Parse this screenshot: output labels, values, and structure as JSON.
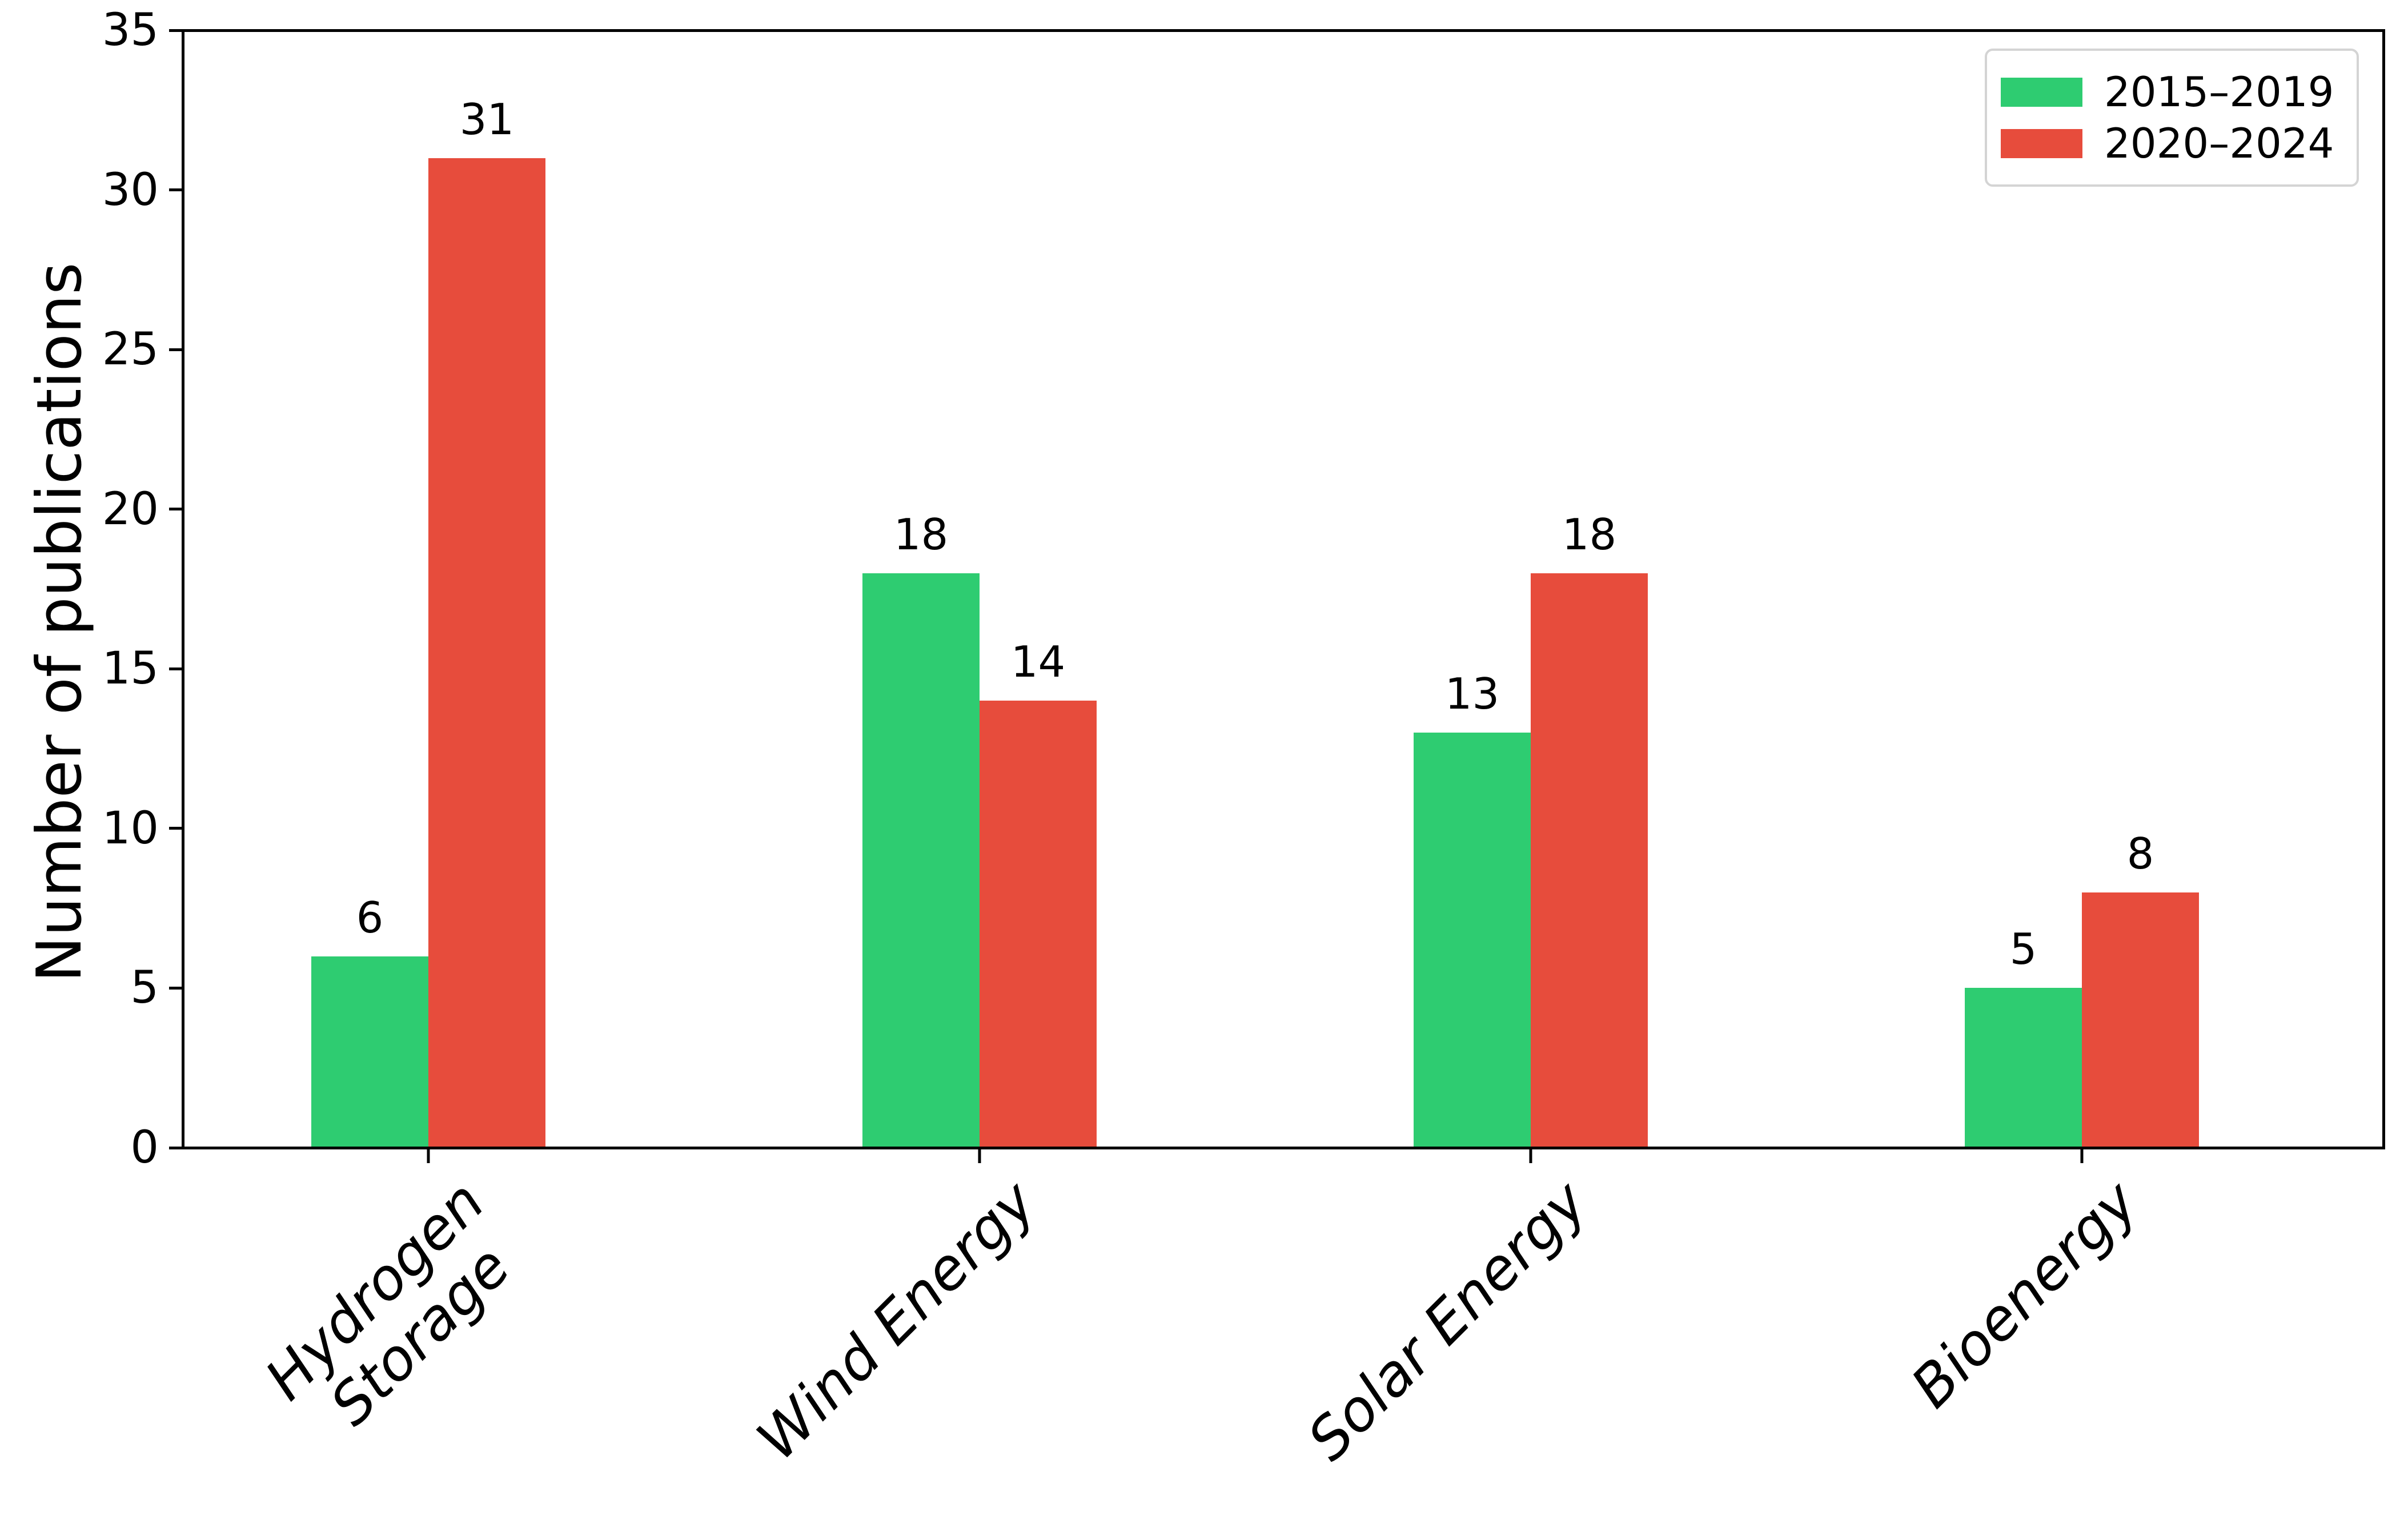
{
  "chart_data": {
    "type": "bar",
    "title": "",
    "xlabel": "",
    "ylabel": "Number of publications",
    "categories": [
      "Hydrogen\nStorage",
      "Wind Energy",
      "Solar Energy",
      "Bioenergy"
    ],
    "series": [
      {
        "name": "2015–2019",
        "color": "#2ecc71",
        "values": [
          6,
          18,
          13,
          5
        ]
      },
      {
        "name": "2020–2024",
        "color": "#e74c3c",
        "values": [
          31,
          14,
          18,
          8
        ]
      }
    ],
    "ylim": [
      0,
      35
    ],
    "yticks": [
      0,
      5,
      10,
      15,
      20,
      25,
      30,
      35
    ],
    "grid": false,
    "legend_position": "upper right",
    "show_value_labels": true,
    "value_labels": {
      "series_2015_2019": [
        6,
        18,
        13,
        5
      ],
      "series_2020_2024": [
        31,
        14,
        18,
        8
      ]
    },
    "axis_color": "#000000",
    "background_color": "#ffffff"
  }
}
